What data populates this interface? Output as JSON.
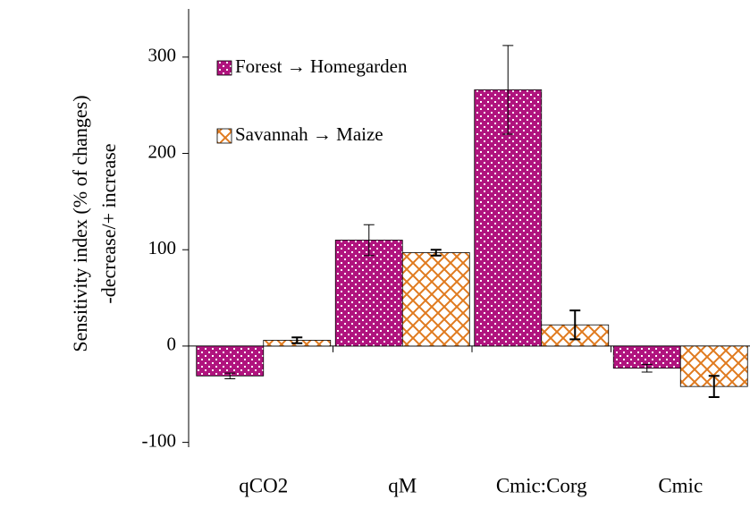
{
  "chart_data": {
    "type": "bar",
    "y_label": "Sensitivity index (% of changes)",
    "y_label_2": "-decrease/+ increase",
    "categories": [
      "qCO2",
      "qM",
      "Cmic:Corg",
      "Cmic"
    ],
    "series": [
      {
        "name": "Forest → Homegarden",
        "color": "#b0147e",
        "values": [
          -31,
          110,
          266,
          -23
        ],
        "errors": [
          3,
          16,
          46,
          4
        ]
      },
      {
        "name": "Savannah → Maize",
        "color": "#e07a1e",
        "values": [
          6,
          97,
          22,
          -42
        ],
        "errors": [
          3,
          3,
          15,
          11
        ]
      }
    ],
    "ylim": [
      -105,
      350
    ],
    "yticks": [
      -100,
      0,
      100,
      200,
      300
    ],
    "legend": "top-left"
  }
}
